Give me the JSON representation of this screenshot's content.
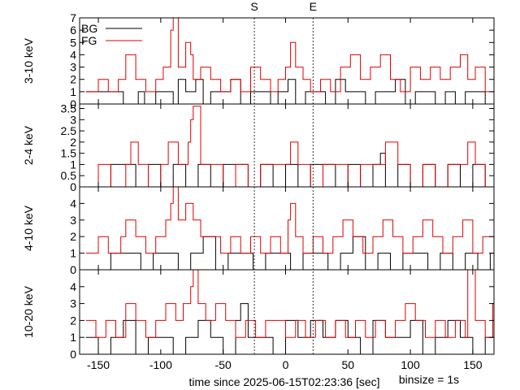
{
  "chart_data": {
    "type": "line",
    "step": true,
    "xlabel": "time since 2025-06-15T02:23:36 [sec]",
    "binsize_label": "binsize = 1s",
    "xlim": [
      -165,
      167
    ],
    "x_ticks": [
      -150,
      -100,
      -50,
      0,
      50,
      100,
      150
    ],
    "x_tick_labels": [
      "-150",
      "-100",
      "-50",
      "0",
      "50",
      "100",
      "150"
    ],
    "markers": [
      {
        "label": "S",
        "x": -25
      },
      {
        "label": "E",
        "x": 22
      }
    ],
    "legend": {
      "placement": "top-left",
      "entries": [
        {
          "label": "BG",
          "color": "#000000"
        },
        {
          "label": "FG",
          "color": "#e00000"
        }
      ]
    },
    "series_colors": {
      "BG": "#000000",
      "FG": "#e00000"
    },
    "panels": [
      {
        "ylabel": "3-10 keV",
        "ylim": [
          0,
          7
        ],
        "y_ticks": [
          0,
          1,
          2,
          3,
          4,
          5,
          6,
          7
        ],
        "y_tick_labels": [
          "0",
          "1",
          "2",
          "3",
          "4",
          "5",
          "6",
          "7"
        ],
        "series": [
          {
            "name": "BG",
            "x": [
              -160,
              -130,
              -118,
              -113,
              -104,
              -96,
              -90,
              -86,
              -80,
              -72,
              -66,
              -60,
              -52,
              -44,
              -36,
              -28,
              -20,
              -12,
              -6,
              2,
              8,
              16,
              24,
              32,
              40,
              48,
              56,
              64,
              72,
              80,
              88,
              96,
              104,
              112,
              120,
              128,
              136,
              144,
              152,
              160
            ],
            "y": [
              1,
              0,
              1,
              0,
              1,
              1,
              0,
              2,
              1,
              2,
              0,
              1,
              1,
              2,
              0,
              1,
              1,
              0,
              1,
              2,
              0,
              1,
              1,
              0,
              2,
              1,
              1,
              0,
              1,
              1,
              2,
              0,
              1,
              1,
              0,
              1,
              0,
              1,
              1,
              0
            ]
          },
          {
            "name": "FG",
            "x": [
              -160,
              -150,
              -142,
              -134,
              -128,
              -120,
              -112,
              -104,
              -98,
              -92,
              -90,
              -86,
              -80,
              -76,
              -74,
              -68,
              -60,
              -52,
              -44,
              -36,
              -28,
              -20,
              -12,
              -6,
              0,
              4,
              8,
              14,
              20,
              28,
              36,
              44,
              52,
              60,
              68,
              76,
              84,
              92,
              100,
              108,
              116,
              124,
              132,
              140,
              146,
              152,
              160
            ],
            "y": [
              1,
              2,
              1,
              2,
              4,
              2,
              1,
              2,
              3,
              6,
              7,
              3,
              5,
              4,
              2,
              3,
              2,
              1,
              2,
              1,
              3,
              2,
              1,
              2,
              3,
              5,
              3,
              2,
              1,
              2,
              1,
              3,
              4,
              2,
              3,
              4,
              2,
              1,
              3,
              2,
              3,
              2,
              3,
              4,
              2,
              3,
              1
            ]
          }
        ]
      },
      {
        "ylabel": "2-4 keV",
        "ylim": [
          0,
          3.7
        ],
        "y_ticks": [
          0,
          0.5,
          1,
          1.5,
          2,
          2.5,
          3,
          3.5
        ],
        "y_tick_labels": [
          "0",
          "0.5",
          "1",
          "1.5",
          "2",
          "2.5",
          "3",
          "3.5"
        ],
        "series": [
          {
            "name": "BG",
            "x": [
              -160,
              -150,
              -140,
              -120,
              -110,
              -100,
              -90,
              -80,
              -70,
              -60,
              -50,
              -40,
              -30,
              -20,
              -10,
              0,
              10,
              20,
              30,
              40,
              50,
              60,
              70,
              76,
              80,
              90,
              100,
              110,
              120,
              130,
              140,
              150,
              160
            ],
            "y": [
              0,
              0,
              1,
              0,
              1,
              0,
              1,
              0,
              1,
              0,
              1,
              1,
              0,
              1,
              0,
              1,
              0,
              1,
              1,
              0,
              1,
              0,
              1,
              1.5,
              0,
              1,
              0,
              1,
              0,
              1,
              0,
              1,
              0
            ]
          },
          {
            "name": "FG",
            "x": [
              -160,
              -150,
              -140,
              -128,
              -124,
              -118,
              -110,
              -100,
              -94,
              -86,
              -78,
              -76,
              -74,
              -68,
              -60,
              -50,
              -40,
              -30,
              -20,
              -10,
              0,
              4,
              10,
              20,
              30,
              40,
              50,
              60,
              70,
              80,
              90,
              100,
              110,
              120,
              130,
              140,
              146,
              152,
              160
            ],
            "y": [
              0,
              1,
              0,
              1,
              2,
              1,
              0,
              1,
              2,
              1,
              2,
              3,
              3.6,
              1,
              1,
              0,
              1,
              0,
              1,
              1,
              1,
              2,
              1,
              0,
              1,
              1,
              0,
              1,
              1,
              2,
              1,
              0,
              1,
              0,
              1,
              1,
              2,
              1,
              0
            ]
          }
        ]
      },
      {
        "ylabel": "4-10 keV",
        "ylim": [
          0,
          5
        ],
        "y_ticks": [
          0,
          1,
          2,
          3,
          4
        ],
        "y_tick_labels": [
          "0",
          "1",
          "2",
          "3",
          "4"
        ],
        "series": [
          {
            "name": "BG",
            "x": [
              -160,
              -140,
              -124,
              -116,
              -106,
              -96,
              -86,
              -76,
              -66,
              -56,
              -46,
              -36,
              -26,
              -16,
              -6,
              4,
              14,
              24,
              34,
              44,
              54,
              64,
              74,
              84,
              94,
              104,
              114,
              124,
              134,
              144,
              154,
              164
            ],
            "y": [
              0,
              1,
              1,
              0,
              1,
              1,
              0,
              1,
              2,
              0,
              1,
              1,
              0,
              1,
              1,
              0,
              1,
              1,
              0,
              1,
              2,
              0,
              1,
              0,
              1,
              1,
              0,
              1,
              0,
              1,
              0,
              1
            ]
          },
          {
            "name": "FG",
            "x": [
              -160,
              -150,
              -142,
              -132,
              -128,
              -120,
              -112,
              -104,
              -96,
              -92,
              -90,
              -86,
              -80,
              -74,
              -68,
              -60,
              -52,
              -44,
              -36,
              -28,
              -20,
              -12,
              -4,
              2,
              4,
              8,
              14,
              22,
              30,
              38,
              46,
              54,
              62,
              70,
              78,
              86,
              94,
              102,
              110,
              118,
              126,
              134,
              142,
              150,
              158
            ],
            "y": [
              1,
              2,
              1,
              2,
              3,
              2,
              1,
              2,
              3,
              4,
              5,
              3,
              4,
              3,
              2,
              2,
              1,
              2,
              1,
              2,
              1,
              2,
              1,
              3,
              4,
              2,
              1,
              2,
              1,
              2,
              3,
              2,
              1,
              2,
              3,
              2,
              1,
              2,
              3,
              2,
              1,
              2,
              3,
              1,
              2
            ]
          }
        ]
      },
      {
        "ylabel": "10-20 keV",
        "ylim": [
          0,
          5
        ],
        "y_ticks": [
          0,
          1,
          2,
          3,
          4
        ],
        "y_tick_labels": [
          "0",
          "1",
          "2",
          "3",
          "4"
        ],
        "series": [
          {
            "name": "BG",
            "x": [
              -160,
              -150,
              -140,
              -130,
              -120,
              -110,
              -100,
              -90,
              -80,
              -70,
              -60,
              -50,
              -40,
              -36,
              -30,
              -20,
              -10,
              0,
              10,
              20,
              30,
              40,
              50,
              60,
              70,
              80,
              90,
              100,
              110,
              120,
              130,
              140,
              150,
              160
            ],
            "y": [
              1,
              0,
              1,
              2,
              0,
              1,
              1,
              0,
              1,
              2,
              1,
              0,
              2,
              3,
              1,
              1,
              0,
              2,
              1,
              2,
              1,
              2,
              1,
              0,
              2,
              1,
              1,
              2,
              0,
              1,
              2,
              1,
              0,
              1
            ]
          },
          {
            "name": "FG",
            "x": [
              -160,
              -152,
              -144,
              -136,
              -128,
              -120,
              -112,
              -104,
              -96,
              -88,
              -82,
              -76,
              -74,
              -70,
              -64,
              -56,
              -48,
              -40,
              -32,
              -24,
              -16,
              -8,
              0,
              8,
              16,
              24,
              32,
              40,
              48,
              56,
              64,
              72,
              80,
              88,
              96,
              104,
              112,
              120,
              128,
              136,
              144,
              146,
              152,
              160,
              166
            ],
            "y": [
              2,
              1,
              2,
              1,
              3,
              2,
              1,
              2,
              3,
              2,
              3,
              4,
              5,
              3,
              2,
              3,
              2,
              1,
              2,
              1,
              2,
              2,
              1,
              2,
              1,
              2,
              1,
              2,
              1,
              2,
              1,
              2,
              1,
              2,
              3,
              2,
              1,
              2,
              1,
              2,
              1,
              5,
              2,
              1,
              3
            ]
          }
        ]
      }
    ]
  }
}
